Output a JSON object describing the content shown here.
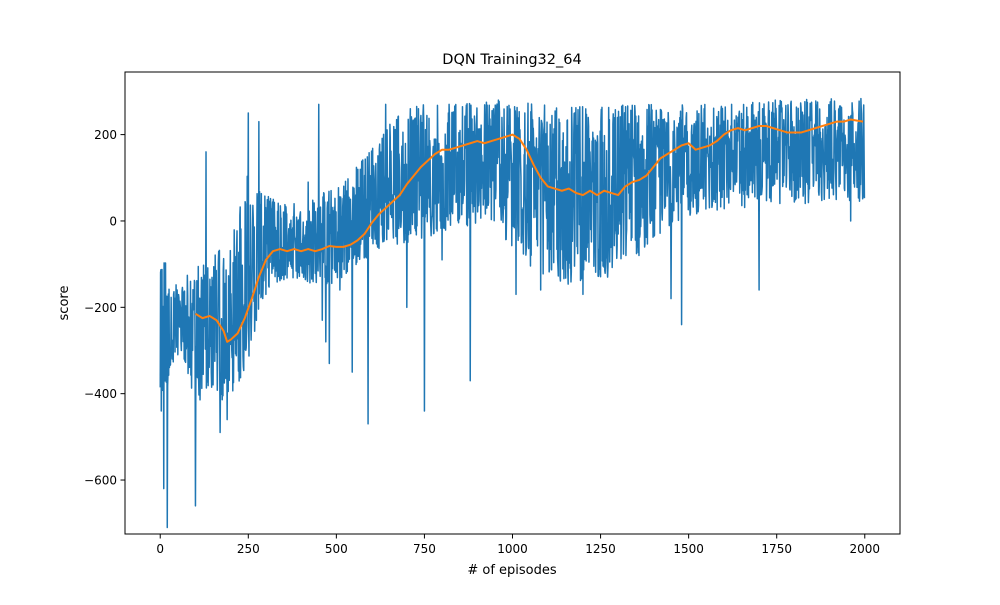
{
  "chart_data": {
    "type": "line",
    "title": "DQN Training32_64",
    "xlabel": "# of episodes",
    "ylabel": "score",
    "xlim": [
      -100,
      2100
    ],
    "ylim": [
      -725,
      345
    ],
    "xticks": [
      0,
      250,
      500,
      750,
      1000,
      1250,
      1500,
      1750,
      2000
    ],
    "yticks": [
      -600,
      -400,
      -200,
      0,
      200
    ],
    "xtick_labels": [
      "0",
      "250",
      "500",
      "750",
      "1000",
      "1250",
      "1500",
      "1750",
      "2000"
    ],
    "ytick_labels": [
      "−600",
      "−400",
      "−200",
      "0",
      "200"
    ],
    "grid": false,
    "legend": "none",
    "series": [
      {
        "color": "#1f77b4",
        "kind": "per-episode score",
        "episodes": 2000,
        "envelope": [
          {
            "x": 0,
            "low": -440,
            "high": -60
          },
          {
            "x": 50,
            "low": -310,
            "high": -150
          },
          {
            "x": 100,
            "low": -420,
            "high": -100
          },
          {
            "x": 150,
            "low": -410,
            "high": -80
          },
          {
            "x": 200,
            "low": -420,
            "high": -40
          },
          {
            "x": 250,
            "low": -330,
            "high": 120
          },
          {
            "x": 300,
            "low": -160,
            "high": 60
          },
          {
            "x": 350,
            "low": -140,
            "high": 40
          },
          {
            "x": 400,
            "low": -140,
            "high": 40
          },
          {
            "x": 450,
            "low": -150,
            "high": 60
          },
          {
            "x": 500,
            "low": -150,
            "high": 80
          },
          {
            "x": 550,
            "low": -110,
            "high": 120
          },
          {
            "x": 600,
            "low": -80,
            "high": 170
          },
          {
            "x": 650,
            "low": -60,
            "high": 230
          },
          {
            "x": 700,
            "low": -50,
            "high": 260
          },
          {
            "x": 750,
            "low": -40,
            "high": 270
          },
          {
            "x": 800,
            "low": -30,
            "high": 270
          },
          {
            "x": 850,
            "low": -20,
            "high": 275
          },
          {
            "x": 900,
            "low": -10,
            "high": 275
          },
          {
            "x": 950,
            "low": -20,
            "high": 280
          },
          {
            "x": 1000,
            "low": -60,
            "high": 280
          },
          {
            "x": 1050,
            "low": -110,
            "high": 275
          },
          {
            "x": 1100,
            "low": -140,
            "high": 270
          },
          {
            "x": 1150,
            "low": -150,
            "high": 270
          },
          {
            "x": 1200,
            "low": -140,
            "high": 270
          },
          {
            "x": 1250,
            "low": -130,
            "high": 265
          },
          {
            "x": 1300,
            "low": -110,
            "high": 270
          },
          {
            "x": 1350,
            "low": -90,
            "high": 275
          },
          {
            "x": 1400,
            "low": -40,
            "high": 275
          },
          {
            "x": 1450,
            "low": -10,
            "high": 275
          },
          {
            "x": 1500,
            "low": 10,
            "high": 275
          },
          {
            "x": 1550,
            "low": 20,
            "high": 275
          },
          {
            "x": 1600,
            "low": 25,
            "high": 275
          },
          {
            "x": 1650,
            "low": 30,
            "high": 275
          },
          {
            "x": 1700,
            "low": 35,
            "high": 280
          },
          {
            "x": 1750,
            "low": 40,
            "high": 280
          },
          {
            "x": 1800,
            "low": 40,
            "high": 280
          },
          {
            "x": 1850,
            "low": 40,
            "high": 285
          },
          {
            "x": 1900,
            "low": 45,
            "high": 285
          },
          {
            "x": 1950,
            "low": 45,
            "high": 285
          },
          {
            "x": 1995,
            "low": 45,
            "high": 285
          }
        ],
        "spikes": [
          {
            "x": 3,
            "y": -440
          },
          {
            "x": 10,
            "y": -620
          },
          {
            "x": 20,
            "y": -710
          },
          {
            "x": 60,
            "y": -300
          },
          {
            "x": 100,
            "y": -660
          },
          {
            "x": 130,
            "y": 160
          },
          {
            "x": 170,
            "y": -490
          },
          {
            "x": 190,
            "y": -460
          },
          {
            "x": 250,
            "y": 250
          },
          {
            "x": 280,
            "y": 230
          },
          {
            "x": 300,
            "y": -170
          },
          {
            "x": 380,
            "y": 40
          },
          {
            "x": 420,
            "y": 90
          },
          {
            "x": 450,
            "y": 270
          },
          {
            "x": 460,
            "y": -230
          },
          {
            "x": 470,
            "y": -280
          },
          {
            "x": 480,
            "y": -330
          },
          {
            "x": 510,
            "y": -160
          },
          {
            "x": 545,
            "y": -350
          },
          {
            "x": 590,
            "y": -470
          },
          {
            "x": 640,
            "y": 270
          },
          {
            "x": 700,
            "y": -200
          },
          {
            "x": 710,
            "y": 260
          },
          {
            "x": 750,
            "y": -440
          },
          {
            "x": 800,
            "y": -90
          },
          {
            "x": 820,
            "y": 270
          },
          {
            "x": 880,
            "y": -370
          },
          {
            "x": 960,
            "y": 280
          },
          {
            "x": 1010,
            "y": -170
          },
          {
            "x": 1080,
            "y": -160
          },
          {
            "x": 1200,
            "y": -170
          },
          {
            "x": 1270,
            "y": -130
          },
          {
            "x": 1450,
            "y": -180
          },
          {
            "x": 1480,
            "y": -240
          },
          {
            "x": 1700,
            "y": -160
          },
          {
            "x": 1960,
            "y": 0
          }
        ]
      },
      {
        "color": "#ff7f0e",
        "kind": "moving average (100 episodes)",
        "x": [
          100,
          120,
          140,
          160,
          180,
          190,
          200,
          220,
          240,
          260,
          280,
          300,
          320,
          340,
          360,
          380,
          400,
          420,
          440,
          460,
          480,
          500,
          520,
          540,
          560,
          580,
          600,
          620,
          640,
          660,
          680,
          700,
          720,
          740,
          760,
          780,
          800,
          820,
          840,
          860,
          880,
          900,
          920,
          940,
          960,
          980,
          1000,
          1020,
          1040,
          1060,
          1080,
          1100,
          1120,
          1140,
          1160,
          1180,
          1200,
          1220,
          1240,
          1260,
          1280,
          1300,
          1320,
          1340,
          1360,
          1380,
          1400,
          1420,
          1440,
          1460,
          1480,
          1500,
          1520,
          1540,
          1560,
          1580,
          1600,
          1620,
          1640,
          1660,
          1680,
          1700,
          1720,
          1740,
          1760,
          1780,
          1800,
          1820,
          1840,
          1860,
          1880,
          1900,
          1920,
          1940,
          1960,
          1980,
          1995
        ],
        "y": [
          -215,
          -225,
          -220,
          -230,
          -255,
          -280,
          -275,
          -260,
          -225,
          -180,
          -130,
          -90,
          -70,
          -65,
          -70,
          -65,
          -70,
          -65,
          -70,
          -65,
          -58,
          -60,
          -60,
          -55,
          -45,
          -30,
          -5,
          15,
          30,
          45,
          60,
          85,
          105,
          125,
          140,
          155,
          165,
          165,
          170,
          175,
          180,
          185,
          180,
          185,
          190,
          195,
          200,
          190,
          165,
          130,
          100,
          80,
          75,
          70,
          75,
          65,
          60,
          70,
          60,
          70,
          65,
          60,
          80,
          90,
          95,
          105,
          125,
          145,
          155,
          165,
          175,
          180,
          165,
          170,
          175,
          185,
          200,
          210,
          215,
          210,
          215,
          220,
          220,
          215,
          210,
          205,
          205,
          205,
          210,
          215,
          220,
          225,
          230,
          230,
          235,
          232,
          230
        ]
      }
    ]
  }
}
